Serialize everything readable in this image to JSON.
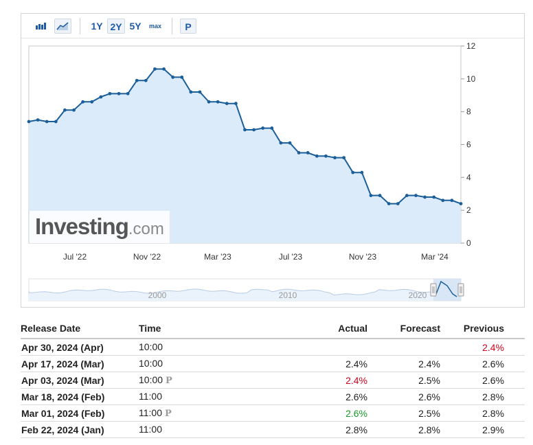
{
  "toolbar": {
    "bar_chart_icon": "bar-chart-icon",
    "area_chart_icon": "area-chart-icon",
    "range_1y": "1Y",
    "range_2y": "2Y",
    "range_5y": "5Y",
    "range_max": "max",
    "prelim_button": "P"
  },
  "watermark": {
    "brand": "Investing",
    "suffix": ".com"
  },
  "chart_data": {
    "type": "line",
    "fill": "area",
    "line_color": "#1a5e9a",
    "fill_color": "#dcebfa",
    "x_ticks": [
      "Jul '22",
      "Nov '22",
      "Mar '23",
      "Jul '23",
      "Nov '23",
      "Mar '24"
    ],
    "y_ticks": [
      "12",
      "10",
      "8",
      "6",
      "4",
      "2",
      "0"
    ],
    "ylim": [
      0,
      12
    ],
    "y_axis_side": "right",
    "series": [
      {
        "values": [
          7.4,
          7.5,
          7.4,
          7.4,
          8.1,
          8.1,
          8.6,
          8.6,
          8.9,
          9.1,
          9.1,
          9.1,
          9.9,
          9.9,
          10.6,
          10.6,
          10.1,
          10.1,
          9.2,
          9.2,
          8.6,
          8.6,
          8.5,
          8.5,
          6.9,
          6.9,
          7.0,
          7.0,
          6.1,
          6.1,
          5.5,
          5.5,
          5.3,
          5.3,
          5.2,
          5.2,
          4.3,
          4.3,
          2.9,
          2.9,
          2.4,
          2.4,
          2.9,
          2.9,
          2.8,
          2.8,
          2.6,
          2.6,
          2.4
        ]
      }
    ],
    "navigator_labels": [
      "2000",
      "2010",
      "2020"
    ]
  },
  "table": {
    "headers": [
      "Release Date",
      "Time",
      "Actual",
      "Forecast",
      "Previous"
    ],
    "rows": [
      {
        "date": "Apr 30, 2024 (Apr)",
        "time": "10:00",
        "prelim": "",
        "actual": "",
        "actual_color": "",
        "forecast": "",
        "previous": "2.4%",
        "previous_color": "red"
      },
      {
        "date": "Apr 17, 2024 (Mar)",
        "time": "10:00",
        "prelim": "",
        "actual": "2.4%",
        "actual_color": "",
        "forecast": "2.4%",
        "previous": "2.6%",
        "previous_color": ""
      },
      {
        "date": "Apr 03, 2024 (Mar)",
        "time": "10:00",
        "prelim": "P",
        "actual": "2.4%",
        "actual_color": "red",
        "forecast": "2.5%",
        "previous": "2.6%",
        "previous_color": ""
      },
      {
        "date": "Mar 18, 2024 (Feb)",
        "time": "11:00",
        "prelim": "",
        "actual": "2.6%",
        "actual_color": "",
        "forecast": "2.6%",
        "previous": "2.8%",
        "previous_color": ""
      },
      {
        "date": "Mar 01, 2024 (Feb)",
        "time": "11:00",
        "prelim": "P",
        "actual": "2.6%",
        "actual_color": "green",
        "forecast": "2.5%",
        "previous": "2.8%",
        "previous_color": ""
      },
      {
        "date": "Feb 22, 2024 (Jan)",
        "time": "11:00",
        "prelim": "",
        "actual": "2.8%",
        "actual_color": "",
        "forecast": "2.8%",
        "previous": "2.9%",
        "previous_color": ""
      }
    ]
  }
}
